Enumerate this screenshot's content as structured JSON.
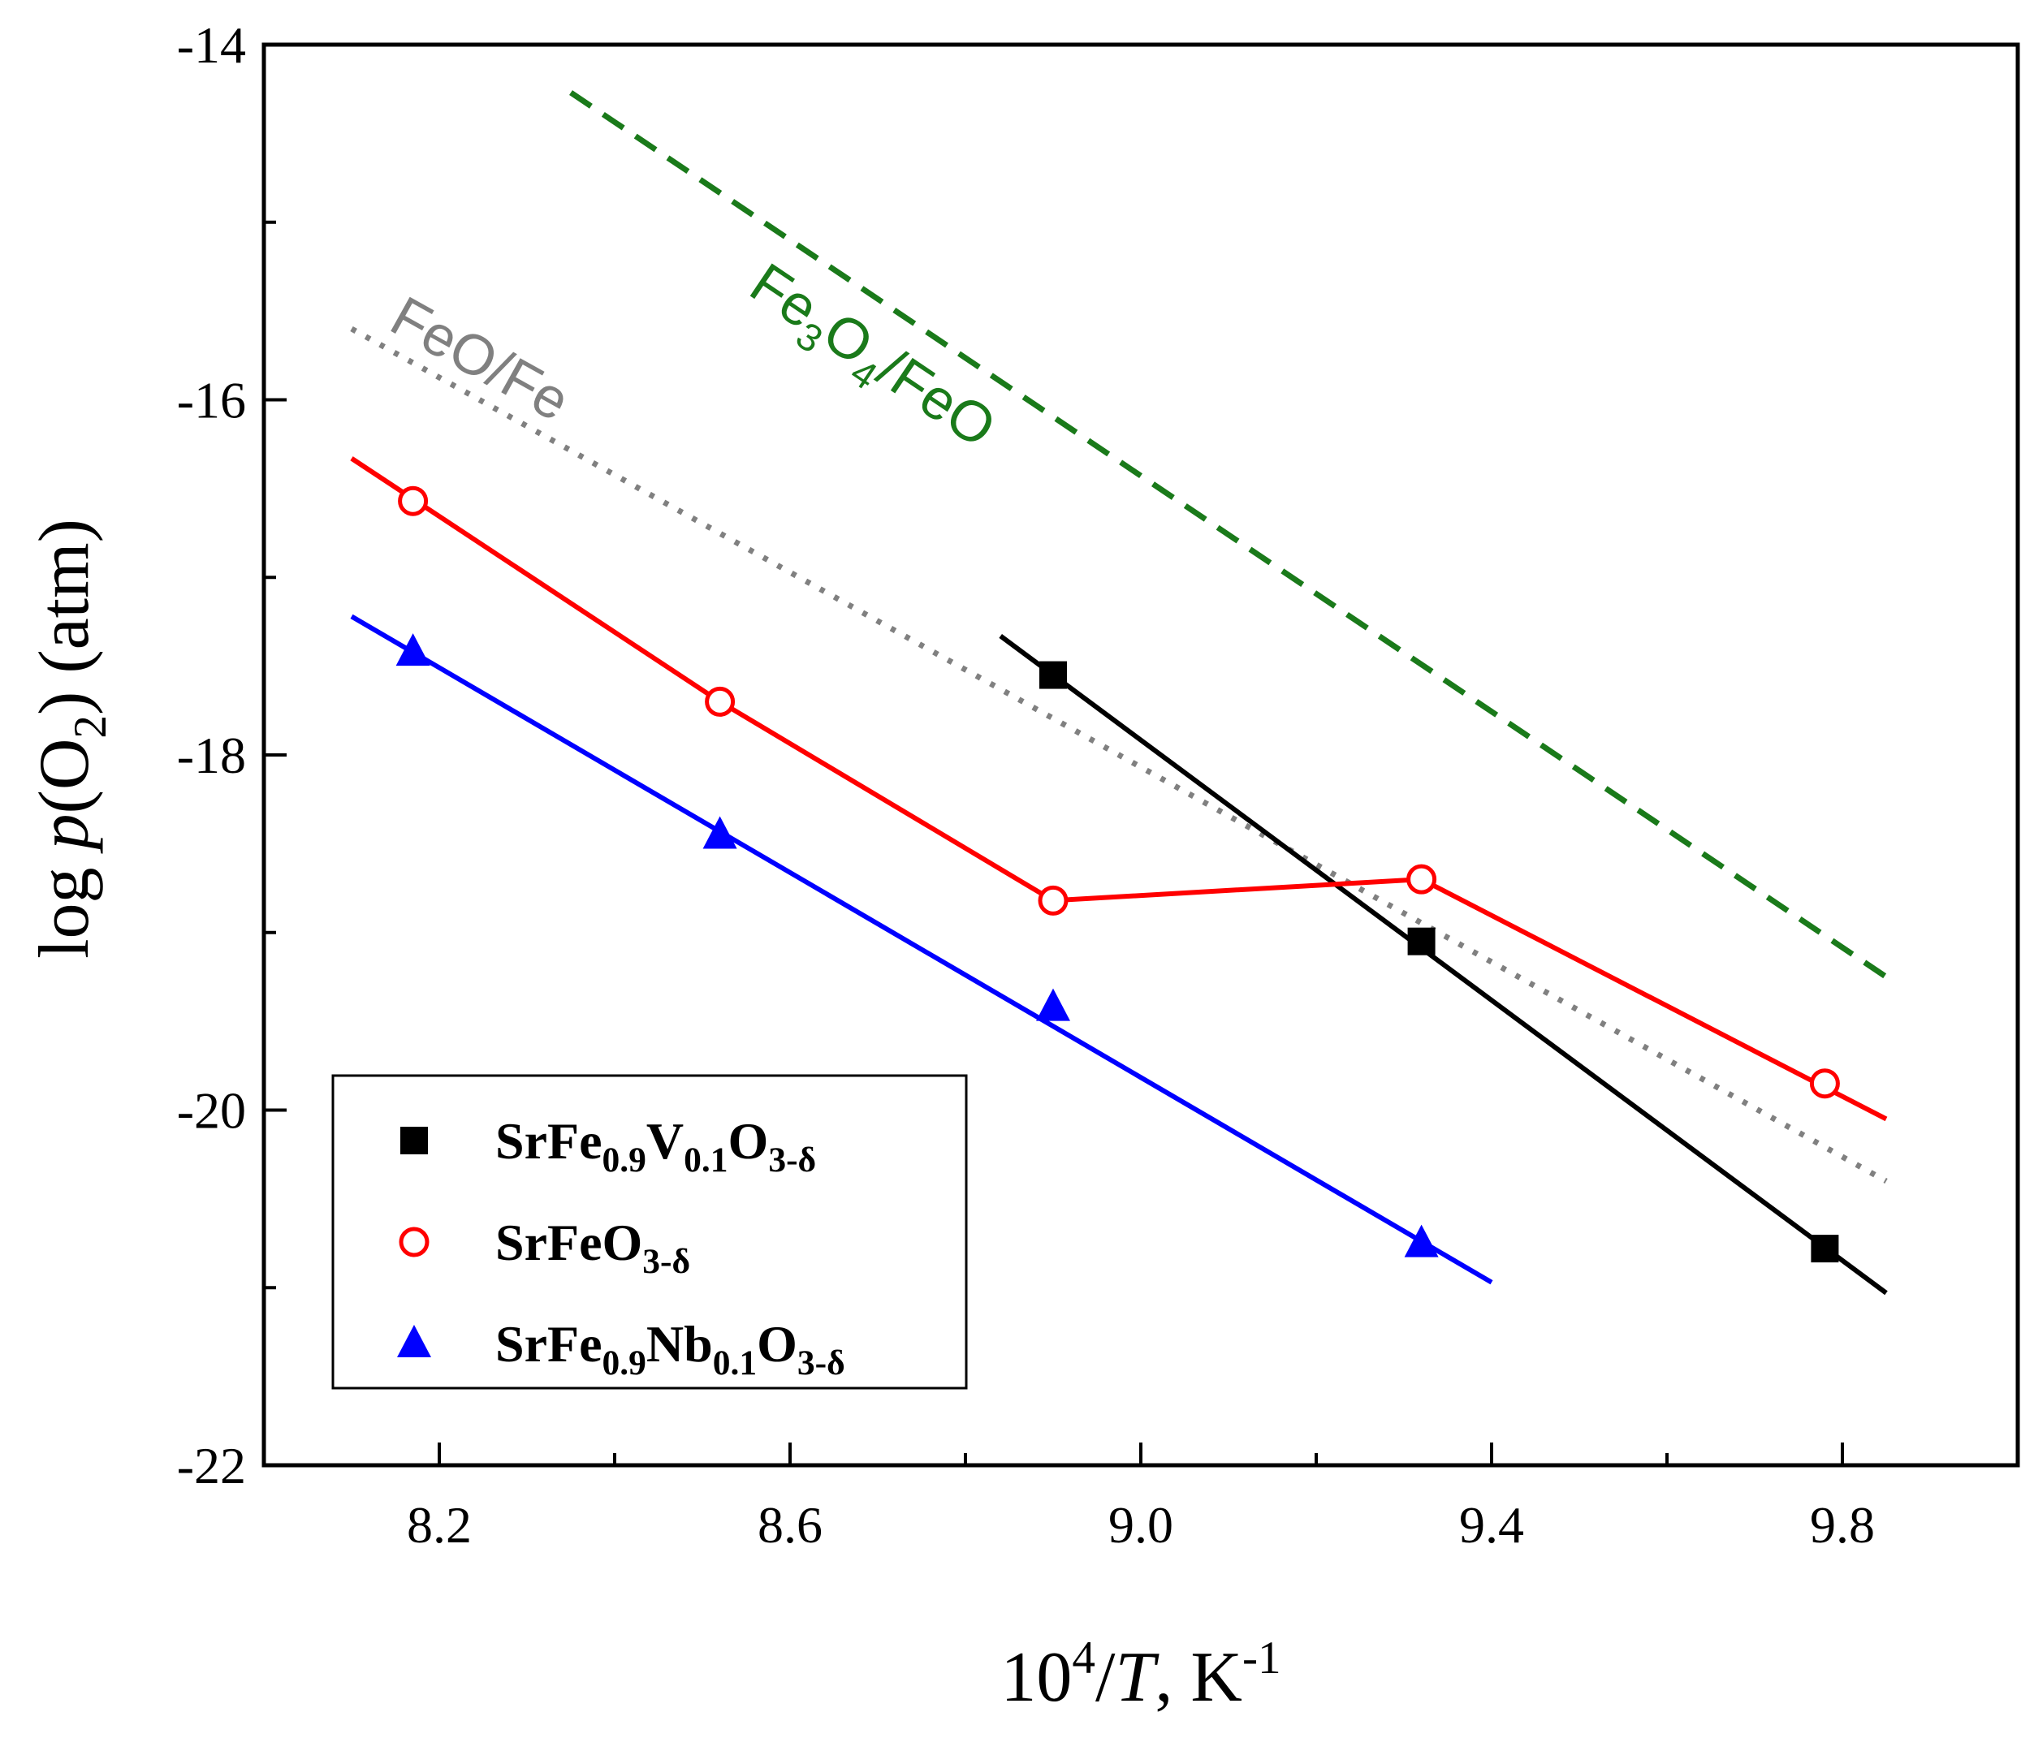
{
  "chart_data": {
    "type": "line",
    "title": "",
    "xlabel": "10⁴/T, K⁻¹",
    "xlabel_parts": {
      "base": "10",
      "sup": "4",
      "slash": "/",
      "var": "T",
      "unit": ", K",
      "unit_sup": "-1"
    },
    "ylabel": "log p(O₂) (atm)",
    "ylabel_parts": {
      "log": "log ",
      "var": "p",
      "open": "(O",
      "sub": "2",
      "close": ") (atm)"
    },
    "xlim": [
      8.0,
      10.0
    ],
    "ylim": [
      -22,
      -14
    ],
    "xticks": [
      8.2,
      8.6,
      9.0,
      9.4,
      9.8
    ],
    "xtick_labels": [
      "8.2",
      "8.6",
      "9.0",
      "9.4",
      "9.8"
    ],
    "xminor": [
      8.4,
      8.8,
      9.2,
      9.6
    ],
    "yticks": [
      -14,
      -16,
      -18,
      -20,
      -22
    ],
    "ytick_labels": [
      "-14",
      "-16",
      "-18",
      "-20",
      "-22"
    ],
    "yminor": [
      -15,
      -17,
      -19,
      -21
    ],
    "grid": false,
    "legend_position": "bottom-left",
    "series": [
      {
        "name": "SrFe0.9V0.1O3-δ",
        "legend_parts": [
          [
            "SrFe",
            ""
          ],
          [
            "0.9",
            "sub"
          ],
          [
            "V",
            ""
          ],
          [
            "0.1",
            "sub"
          ],
          [
            "O",
            ""
          ],
          [
            "3-δ",
            "sub"
          ]
        ],
        "color": "#000000",
        "marker": "square",
        "points": [
          [
            8.9,
            -17.55
          ],
          [
            9.32,
            -19.05
          ],
          [
            9.78,
            -20.78
          ]
        ],
        "fit_line": [
          [
            8.84,
            -17.33
          ],
          [
            9.85,
            -21.03
          ]
        ]
      },
      {
        "name": "SrFeO3-δ",
        "legend_parts": [
          [
            "SrFeO",
            ""
          ],
          [
            "3-δ",
            "sub"
          ]
        ],
        "color": "#ff0000",
        "marker": "circle-open",
        "points": [
          [
            8.17,
            -16.57
          ],
          [
            8.52,
            -17.7
          ],
          [
            8.9,
            -18.82
          ],
          [
            9.32,
            -18.7
          ],
          [
            9.78,
            -19.85
          ]
        ],
        "fit_line": [
          [
            8.1,
            -16.33
          ],
          [
            8.52,
            -17.7
          ],
          [
            8.9,
            -18.82
          ],
          [
            9.32,
            -18.7
          ],
          [
            9.85,
            -20.05
          ]
        ]
      },
      {
        "name": "SrFe0.9Nb0.1O3-δ",
        "legend_parts": [
          [
            "SrFe",
            ""
          ],
          [
            "0.9",
            "sub"
          ],
          [
            "Nb",
            ""
          ],
          [
            "0.1",
            "sub"
          ],
          [
            "O",
            ""
          ],
          [
            "3-δ",
            "sub"
          ]
        ],
        "color": "#0000ff",
        "marker": "triangle",
        "points": [
          [
            8.17,
            -17.42
          ],
          [
            8.52,
            -18.45
          ],
          [
            8.9,
            -19.42
          ],
          [
            9.32,
            -20.75
          ]
        ],
        "fit_line": [
          [
            8.1,
            -17.22
          ],
          [
            9.4,
            -20.97
          ]
        ]
      }
    ],
    "reference_lines": [
      {
        "name": "Fe3O4/FeO",
        "label_parts": [
          [
            "Fe",
            ""
          ],
          [
            "3",
            "sub"
          ],
          [
            "O",
            ""
          ],
          [
            "4",
            "sub"
          ],
          [
            "/FeO",
            ""
          ]
        ],
        "color": "#1a7a1a",
        "style": "dashed",
        "points": [
          [
            8.35,
            -14.27
          ],
          [
            9.85,
            -19.25
          ]
        ],
        "label_at": [
          8.55,
          -15.4
        ]
      },
      {
        "name": "FeO/Fe",
        "label_parts": [
          [
            "FeO/Fe",
            ""
          ]
        ],
        "color": "#808080",
        "style": "dotted",
        "points": [
          [
            8.1,
            -15.6
          ],
          [
            9.85,
            -20.4
          ]
        ],
        "label_at": [
          8.14,
          -15.6
        ]
      }
    ]
  }
}
